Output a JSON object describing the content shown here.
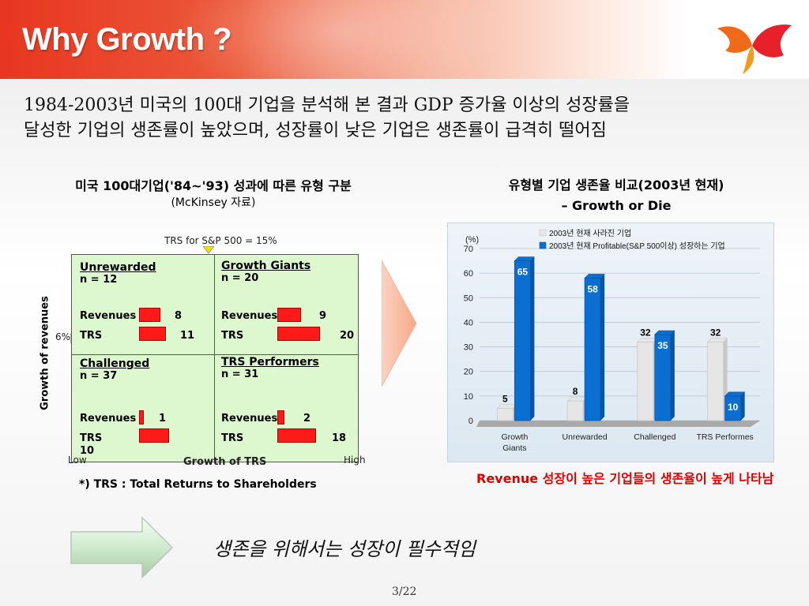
{
  "slide": {
    "title": "Why Growth ?",
    "intro_line1": "1984-2003년 미국의 100대 기업을 분석해 본 결과 GDP 증가율 이상의 성장률을",
    "intro_line2": "달성한 기업의 생존률이 높았으며, 성장률이 낮은 기업은 생존률이 급격히 떨어짐",
    "conclusion": "생존을 위해서는 성장이 필수적임",
    "page": "3/22"
  },
  "left_panel": {
    "heading": "미국 100대기업('84~'93) 성과에 따른 유형 구분",
    "source": "(McKinsey 자료)",
    "trs_reference": "TRS for S&P 500 = 15%",
    "y_axis_label": "Growth of revenues",
    "y_marker": "6%",
    "x_axis_label": "Growth of TRS",
    "x_low": "Low",
    "x_high": "High",
    "footnote": "*) TRS : Total Returns to Shareholders",
    "quadrants": {
      "unrewarded": {
        "name": "Unrewarded",
        "n": "n = 12",
        "revenues_label": "Revenues",
        "revenues": "8",
        "trs_label": "TRS",
        "trs": "11"
      },
      "growth_giants": {
        "name": "Growth Giants",
        "n": "n = 20",
        "revenues_label": "Revenues",
        "revenues": "9",
        "trs_label": "TRS",
        "trs": "20"
      },
      "challenged": {
        "name": "Challenged",
        "n": "n = 37",
        "revenues_label": "Revenues",
        "revenues": "1",
        "trs_label": "TRS",
        "trs": "10"
      },
      "trs_performers": {
        "name": "TRS Performers",
        "n": "n = 31",
        "revenues_label": "Revenues",
        "revenues": "2",
        "trs_label": "TRS",
        "trs": "18"
      }
    }
  },
  "right_panel": {
    "heading_line1": "유형별 기업 생존율 비교(2003년 현재)",
    "heading_line2": "– Growth or Die",
    "finding": "Revenue 성장이 높은 기업들의  생존율이 높게 나타남"
  },
  "colors": {
    "series_gray": "#e6e6e6",
    "series_blue": "#0a6fd1",
    "accent_red": "#e00000"
  },
  "chart_data": {
    "type": "bar",
    "categories": [
      "Growth Giants",
      "Unrewarded",
      "Challenged",
      "TRS Performes"
    ],
    "category_lines": [
      [
        "Growth",
        "Giants"
      ],
      [
        "Unrewarded"
      ],
      [
        "Challenged"
      ],
      [
        "TRS Performes"
      ]
    ],
    "series": [
      {
        "name": "2003년 현재 사라진 기업",
        "values": [
          5,
          8,
          32,
          32
        ]
      },
      {
        "name": "2003년 현재 Profitable(S&P 500이상) 성장하는 기업",
        "values": [
          65,
          58,
          35,
          10
        ]
      }
    ],
    "value_labels": [
      [
        "5",
        "8",
        "32",
        "32"
      ],
      [
        "65",
        "58",
        "35",
        "10"
      ]
    ],
    "ylabel": "(%)",
    "ylim": [
      0,
      70
    ],
    "yticks": [
      0,
      10,
      20,
      30,
      40,
      50,
      60,
      70
    ],
    "grid": true,
    "legend": "top-right"
  }
}
